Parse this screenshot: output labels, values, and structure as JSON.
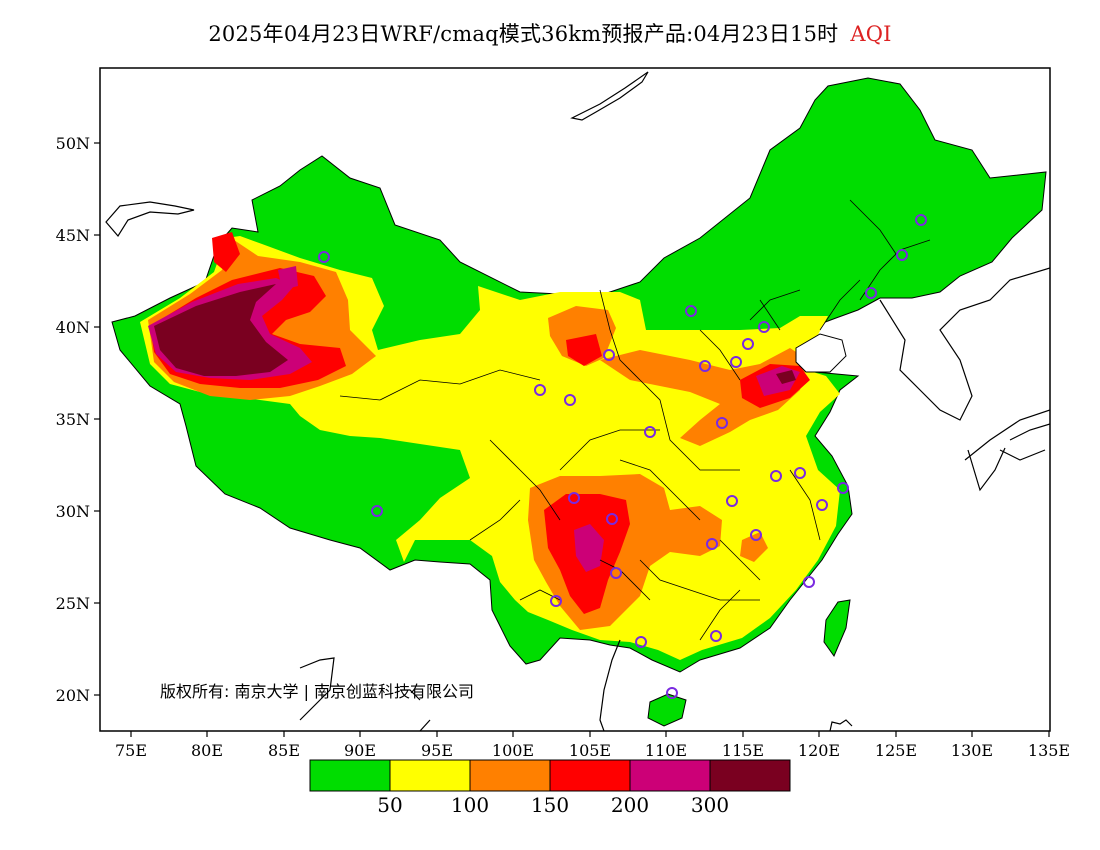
{
  "title": {
    "main": "2025年04月23日WRF/cmaq模式36km预报产品:04月23日15时",
    "variable": "AQI",
    "variable_color": "#dd2222"
  },
  "axes": {
    "lat_labels": [
      "50N",
      "45N",
      "40N",
      "35N",
      "30N",
      "25N",
      "20N"
    ],
    "lon_labels": [
      "75E",
      "80E",
      "85E",
      "90E",
      "95E",
      "100E",
      "105E",
      "110E",
      "115E",
      "120E",
      "125E",
      "130E",
      "135E"
    ]
  },
  "copyright": "版权所有: 南京大学 | 南京创蓝科技有限公司",
  "colorbar": {
    "colors": [
      "#00dd00",
      "#ffff00",
      "#ff8000",
      "#ff0000",
      "#cc0077",
      "#7a0020"
    ],
    "labels": [
      "50",
      "100",
      "150",
      "200",
      "300"
    ]
  },
  "map_colors": {
    "good": "#00dd00",
    "moderate": "#ffff00",
    "unhealthy_sensitive": "#ff8000",
    "unhealthy": "#ff0000",
    "very_unhealthy": "#cc0077",
    "hazardous": "#7a0020",
    "station_marker": "#7a2ae0"
  }
}
